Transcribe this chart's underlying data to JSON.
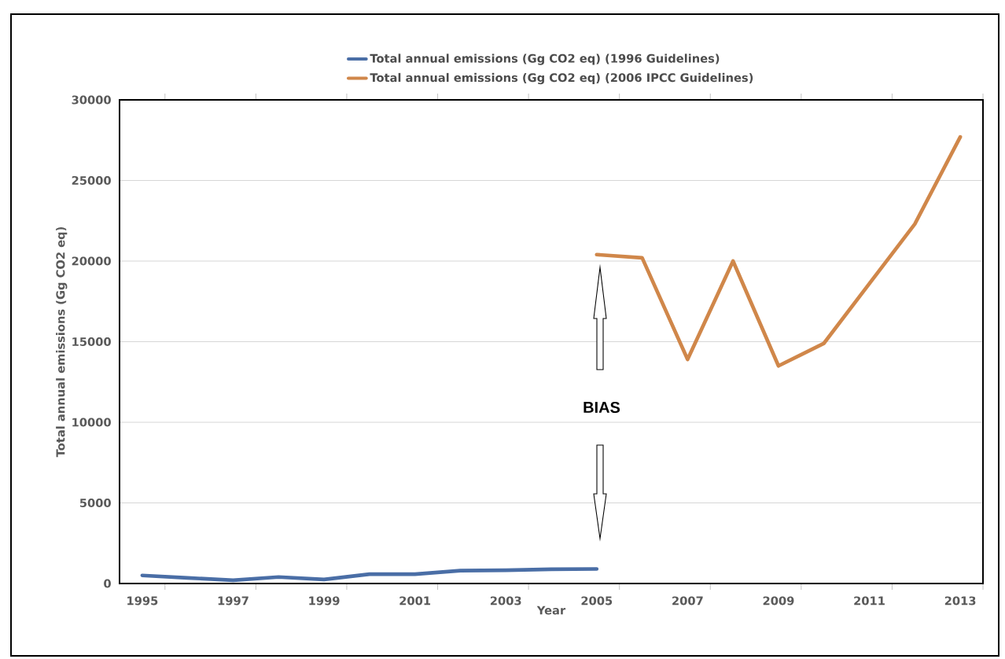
{
  "chart_data": {
    "type": "line",
    "xlabel": "Year",
    "ylabel": "Total annual emissions (Gg CO2 eq)",
    "xlim": [
      1994.5,
      2013.5
    ],
    "xticks": [
      1995,
      1997,
      1999,
      2001,
      2003,
      2005,
      2007,
      2009,
      2011,
      2013
    ],
    "ylim": [
      0,
      30000
    ],
    "yticks": [
      0,
      5000,
      10000,
      15000,
      20000,
      25000,
      30000
    ],
    "grid": "y",
    "legend": "top",
    "marker": "none",
    "line_style": "solid",
    "annotations": [
      "BIAS"
    ],
    "series": [
      {
        "name": "Total annual emissions (Gg CO2 eq) (1996 Guidelines)",
        "color": "#4a6ea6",
        "x": [
          1995,
          1996,
          1997,
          1998,
          1999,
          2000,
          2001,
          2002,
          2003,
          2004,
          2005
        ],
        "values": [
          500,
          350,
          200,
          400,
          250,
          580,
          580,
          800,
          820,
          880,
          900
        ]
      },
      {
        "name": "Total annual emissions (Gg CO2 eq) (2006 IPCC Guidelines)",
        "color": "#d0874a",
        "x": [
          2005,
          2006,
          2007,
          2008,
          2009,
          2010,
          2011,
          2012,
          2013
        ],
        "values": [
          20400,
          20200,
          13900,
          20000,
          13500,
          14900,
          18600,
          22300,
          27700
        ]
      }
    ]
  }
}
